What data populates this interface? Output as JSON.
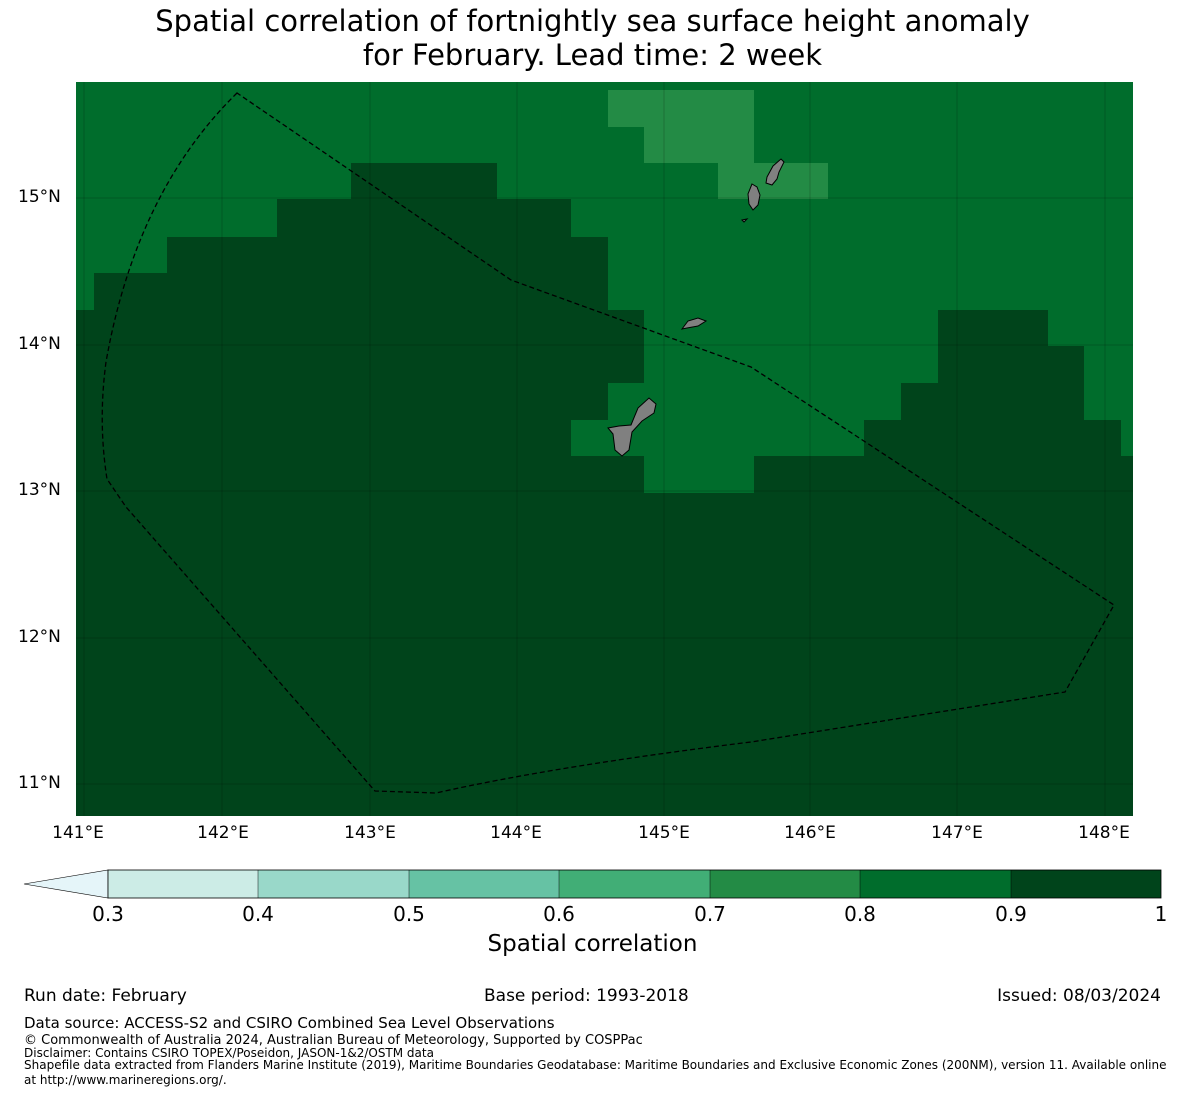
{
  "title": {
    "line1": "Spatial correlation of fortnightly sea surface height anomaly",
    "line2": "for February. Lead time: 2 week"
  },
  "map": {
    "x_ticks": [
      "141°E",
      "142°E",
      "143°E",
      "144°E",
      "145°E",
      "146°E",
      "147°E",
      "148°E"
    ],
    "y_ticks": [
      "15°N",
      "14°N",
      "13°N",
      "12°N",
      "11°N"
    ],
    "lon_range": [
      140.95,
      148.2
    ],
    "lat_range": [
      10.8,
      15.8
    ],
    "colors": {
      "band_0.7_0.8": "#238b45",
      "band_0.8_0.9": "#006d2c",
      "band_0.9_1": "#00441b",
      "land": "#808080"
    }
  },
  "colorbar": {
    "title": "Spatial correlation",
    "labels": [
      "0.3",
      "0.4",
      "0.5",
      "0.6",
      "0.7",
      "0.8",
      "0.9",
      "1"
    ],
    "colors": [
      "#e5f5f9",
      "#ccece6",
      "#99d8c9",
      "#66c2a4",
      "#41ae76",
      "#238b45",
      "#006d2c",
      "#00441b"
    ]
  },
  "footer": {
    "run_date": "Run date: February",
    "base_period": "Base period: 1993-2018",
    "issued": "Issued: 08/03/2024",
    "data_source": "Data source: ACCESS-S2 and CSIRO Combined Sea Level Observations",
    "copyright": "© Commonwealth of Australia 2024, Australian Bureau of Meteorology, Supported by COSPPac",
    "disclaimer": "Disclaimer: Contains CSIRO TOPEX/Poseidon, JASON-1&2/OSTM data",
    "shapefile_line1": "Shapefile data extracted from Flanders Marine Institute (2019), Maritime Boundaries Geodatabase: Maritime Boundaries and Exclusive Economic Zones (200NM), version 11. Available online",
    "shapefile_line2": "at http://www.marineregions.org/."
  }
}
